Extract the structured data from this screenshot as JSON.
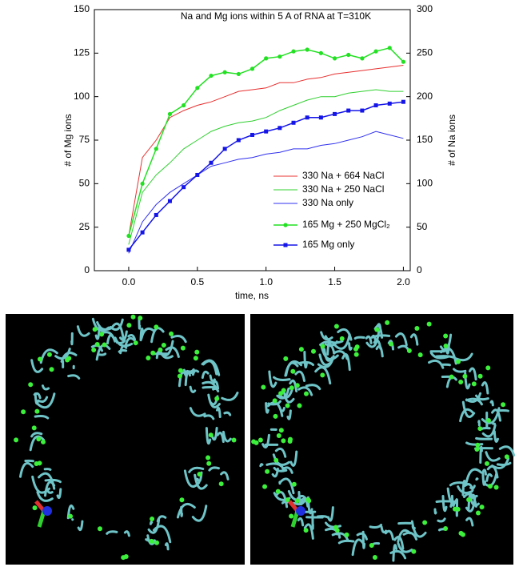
{
  "chart_data": {
    "type": "line",
    "title": "Na and Mg ions within 5 A of  RNA at T=310K",
    "xlabel": "time, ns",
    "ylabel": "# of Mg ions",
    "y2label": "# of Na ions",
    "x": [
      0,
      0.1,
      0.2,
      0.3,
      0.4,
      0.5,
      0.6,
      0.7,
      0.8,
      0.9,
      1.0,
      1.1,
      1.2,
      1.3,
      1.4,
      1.5,
      1.6,
      1.7,
      1.8,
      1.9,
      2.0
    ],
    "xlim": [
      -0.25,
      2.05
    ],
    "xticks": [
      {
        "value": 0,
        "label": "0.0"
      },
      {
        "value": 0.5,
        "label": "0.5"
      },
      {
        "value": 1,
        "label": "1.0"
      },
      {
        "value": 1.5,
        "label": "1.5"
      },
      {
        "value": 2,
        "label": "2.0"
      }
    ],
    "ylim": [
      0,
      150
    ],
    "yticks": [
      0,
      25,
      50,
      75,
      100,
      125,
      150
    ],
    "y2lim": [
      0,
      300
    ],
    "y2ticks": [
      0,
      50,
      100,
      150,
      200,
      250,
      300
    ],
    "series": [
      {
        "name": "330 Na + 664 NaCl",
        "color": "#e83030",
        "axis": "y2",
        "values": [
          40,
          130,
          150,
          176,
          184,
          190,
          194,
          200,
          206,
          208,
          210,
          216,
          216,
          220,
          222,
          226,
          228,
          230,
          232,
          234,
          236
        ]
      },
      {
        "name": "330 Na + 250  NaCl",
        "color": "#30d030",
        "axis": "y2",
        "values": [
          30,
          90,
          110,
          124,
          140,
          150,
          160,
          166,
          170,
          172,
          176,
          184,
          190,
          196,
          200,
          200,
          204,
          206,
          208,
          206,
          206
        ]
      },
      {
        "name": "330 Na only",
        "color": "#3030f0",
        "axis": "y2",
        "values": [
          20,
          56,
          76,
          90,
          100,
          110,
          120,
          124,
          128,
          130,
          134,
          136,
          140,
          140,
          144,
          146,
          150,
          154,
          160,
          156,
          152
        ]
      },
      {
        "name": "165 Mg + 250 MgCl₂",
        "color": "#22e022",
        "marker": "circle",
        "values": [
          20,
          50,
          70,
          90,
          95,
          105,
          112,
          114,
          113,
          116,
          122,
          123,
          126,
          127,
          125,
          122,
          124,
          122,
          126,
          128,
          120
        ]
      },
      {
        "name": "165 Mg only",
        "color": "#1515e8",
        "marker": "square",
        "values": [
          12,
          22,
          32,
          40,
          48,
          55,
          62,
          70,
          75,
          78,
          80,
          82,
          85,
          88,
          88,
          90,
          92,
          92,
          95,
          96,
          97
        ]
      }
    ]
  }
}
